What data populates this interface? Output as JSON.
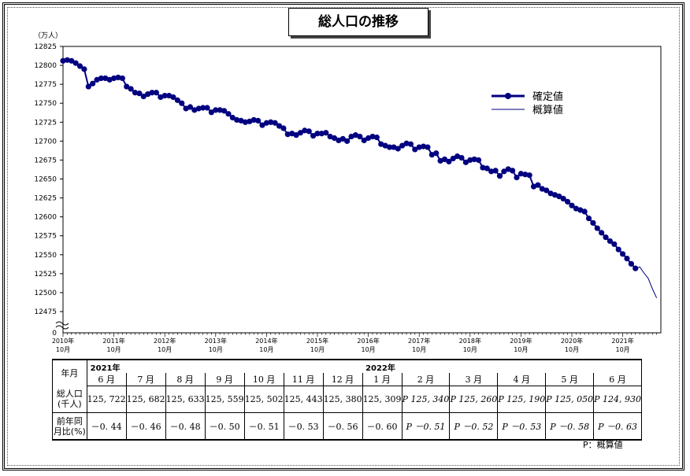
{
  "chart_data": {
    "type": "line",
    "title": "総人口の推移",
    "ylabel": "（万人）",
    "ylim": [
      12450,
      12825
    ],
    "y_ticks": [
      12475,
      12500,
      12525,
      12550,
      12575,
      12600,
      12625,
      12650,
      12675,
      12700,
      12725,
      12750,
      12775,
      12800,
      12825
    ],
    "y_zero_label": "0",
    "x_ticks": [
      {
        "year": "2010年",
        "month": "10月"
      },
      {
        "year": "2011年",
        "month": "10月"
      },
      {
        "year": "2012年",
        "month": "10月"
      },
      {
        "year": "2013年",
        "month": "10月"
      },
      {
        "year": "2014年",
        "month": "10月"
      },
      {
        "year": "2015年",
        "month": "10月"
      },
      {
        "year": "2016年",
        "month": "10月"
      },
      {
        "year": "2017年",
        "month": "10月"
      },
      {
        "year": "2018年",
        "month": "10月"
      },
      {
        "year": "2019年",
        "month": "10月"
      },
      {
        "year": "2020年",
        "month": "10月"
      },
      {
        "year": "2021年",
        "month": "10月"
      }
    ],
    "legend_position": "right",
    "series": [
      {
        "name": "確定値",
        "style": "line-markers",
        "color": "#000080",
        "start": "2010-10",
        "values": [
          12806,
          12807,
          12806,
          12803,
          12799,
          12795,
          12772,
          12776,
          12781,
          12783,
          12783,
          12781,
          12783,
          12784,
          12783,
          12772,
          12769,
          12764,
          12763,
          12759,
          12762,
          12764,
          12764,
          12758,
          12760,
          12760,
          12758,
          12754,
          12750,
          12743,
          12745,
          12741,
          12743,
          12744,
          12744,
          12738,
          12741,
          12741,
          12740,
          12736,
          12731,
          12728,
          12727,
          12725,
          12726,
          12728,
          12727,
          12721,
          12724,
          12725,
          12724,
          12720,
          12717,
          12709,
          12710,
          12708,
          12711,
          12714,
          12713,
          12707,
          12710,
          12710,
          12711,
          12706,
          12704,
          12701,
          12703,
          12700,
          12706,
          12708,
          12706,
          12701,
          12704,
          12706,
          12705,
          12696,
          12694,
          12692,
          12692,
          12690,
          12694,
          12697,
          12696,
          12689,
          12692,
          12693,
          12692,
          12682,
          12684,
          12674,
          12676,
          12673,
          12677,
          12680,
          12678,
          12672,
          12675,
          12676,
          12675,
          12665,
          12664,
          12660,
          12661,
          12654,
          12660,
          12663,
          12661,
          12652,
          12657,
          12656,
          12655,
          12640,
          12642,
          12637,
          12635,
          12631,
          12629,
          12627,
          12624,
          12620,
          12615,
          12611,
          12609,
          12607,
          12598,
          12592,
          12585,
          12579,
          12573,
          12568,
          12564,
          12557,
          12551,
          12545,
          12538,
          12532
        ]
      },
      {
        "name": "概算値",
        "style": "line",
        "color": "#000080",
        "start": "2022-01",
        "values": [
          12531,
          12534,
          12526,
          12519,
          12505,
          12493
        ]
      }
    ]
  },
  "table": {
    "row_headers": [
      "年月",
      "総人口\n(千人)",
      "前年同\n月比(%)"
    ],
    "year_labels": [
      {
        "label": "2021年",
        "span": 7
      },
      {
        "label": "2022年",
        "span": 6
      }
    ],
    "months": [
      "6 月",
      "7 月",
      "8 月",
      "9 月",
      "10 月",
      "11 月",
      "12 月",
      "1 月",
      "2 月",
      "3 月",
      "4 月",
      "5 月",
      "6 月"
    ],
    "population": [
      "125, 722",
      "125, 682",
      "125, 633",
      "125, 559",
      "125, 502",
      "125, 443",
      "125, 380",
      "125, 309",
      "P 125, 340",
      "P 125, 260",
      "P 125, 190",
      "P 125, 050",
      "P 124, 930"
    ],
    "change": [
      "－0. 44",
      "－0. 46",
      "－0. 48",
      "－0. 50",
      "－0. 51",
      "－0. 53",
      "－0. 56",
      "－0. 60",
      "P －0. 51",
      "P －0. 52",
      "P －0. 53",
      "P －0. 58",
      "P －0. 63"
    ],
    "provisional_from_index": 8
  },
  "footnote": "P：概算値"
}
